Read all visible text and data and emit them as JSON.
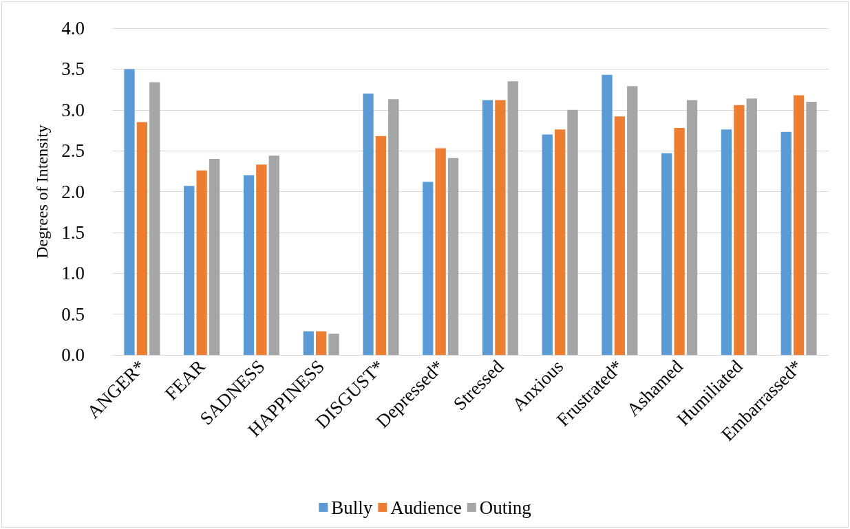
{
  "chart_data": {
    "type": "bar",
    "ylabel": "Degrees of Intensity",
    "categories": [
      "ANGER*",
      "FEAR",
      "SADNESS",
      "HAPPINESS",
      "DISGUST*",
      "Depressed*",
      "Stressed",
      "Anxious",
      "Frustrated*",
      "Ashamed",
      "Humiliated",
      "Embarrassed*"
    ],
    "series": [
      {
        "name": "Bully",
        "color": "#5b9bd5",
        "values": [
          3.5,
          2.07,
          2.2,
          0.29,
          3.2,
          2.12,
          3.12,
          2.7,
          3.43,
          2.47,
          2.76,
          2.73
        ]
      },
      {
        "name": "Audience",
        "color": "#ed7d31",
        "values": [
          2.85,
          2.26,
          2.33,
          0.29,
          2.68,
          2.53,
          3.12,
          2.76,
          2.92,
          2.78,
          3.06,
          3.18
        ]
      },
      {
        "name": "Outing",
        "color": "#a5a5a5",
        "values": [
          3.34,
          2.4,
          2.44,
          0.26,
          3.13,
          2.41,
          3.35,
          3.0,
          3.29,
          3.12,
          3.14,
          3.1
        ]
      }
    ],
    "ylim": [
      0,
      4
    ],
    "yticks": [
      {
        "value": 0,
        "label": "0.0"
      },
      {
        "value": 0.5,
        "label": "0.5"
      },
      {
        "value": 1,
        "label": "1.0"
      },
      {
        "value": 1.5,
        "label": "1.5"
      },
      {
        "value": 2,
        "label": "2.0"
      },
      {
        "value": 2.5,
        "label": "2.5"
      },
      {
        "value": 3,
        "label": "3.0"
      },
      {
        "value": 3.5,
        "label": "3.5"
      },
      {
        "value": 4,
        "label": "4.0"
      }
    ],
    "grid": "y",
    "legend": "bottom"
  }
}
